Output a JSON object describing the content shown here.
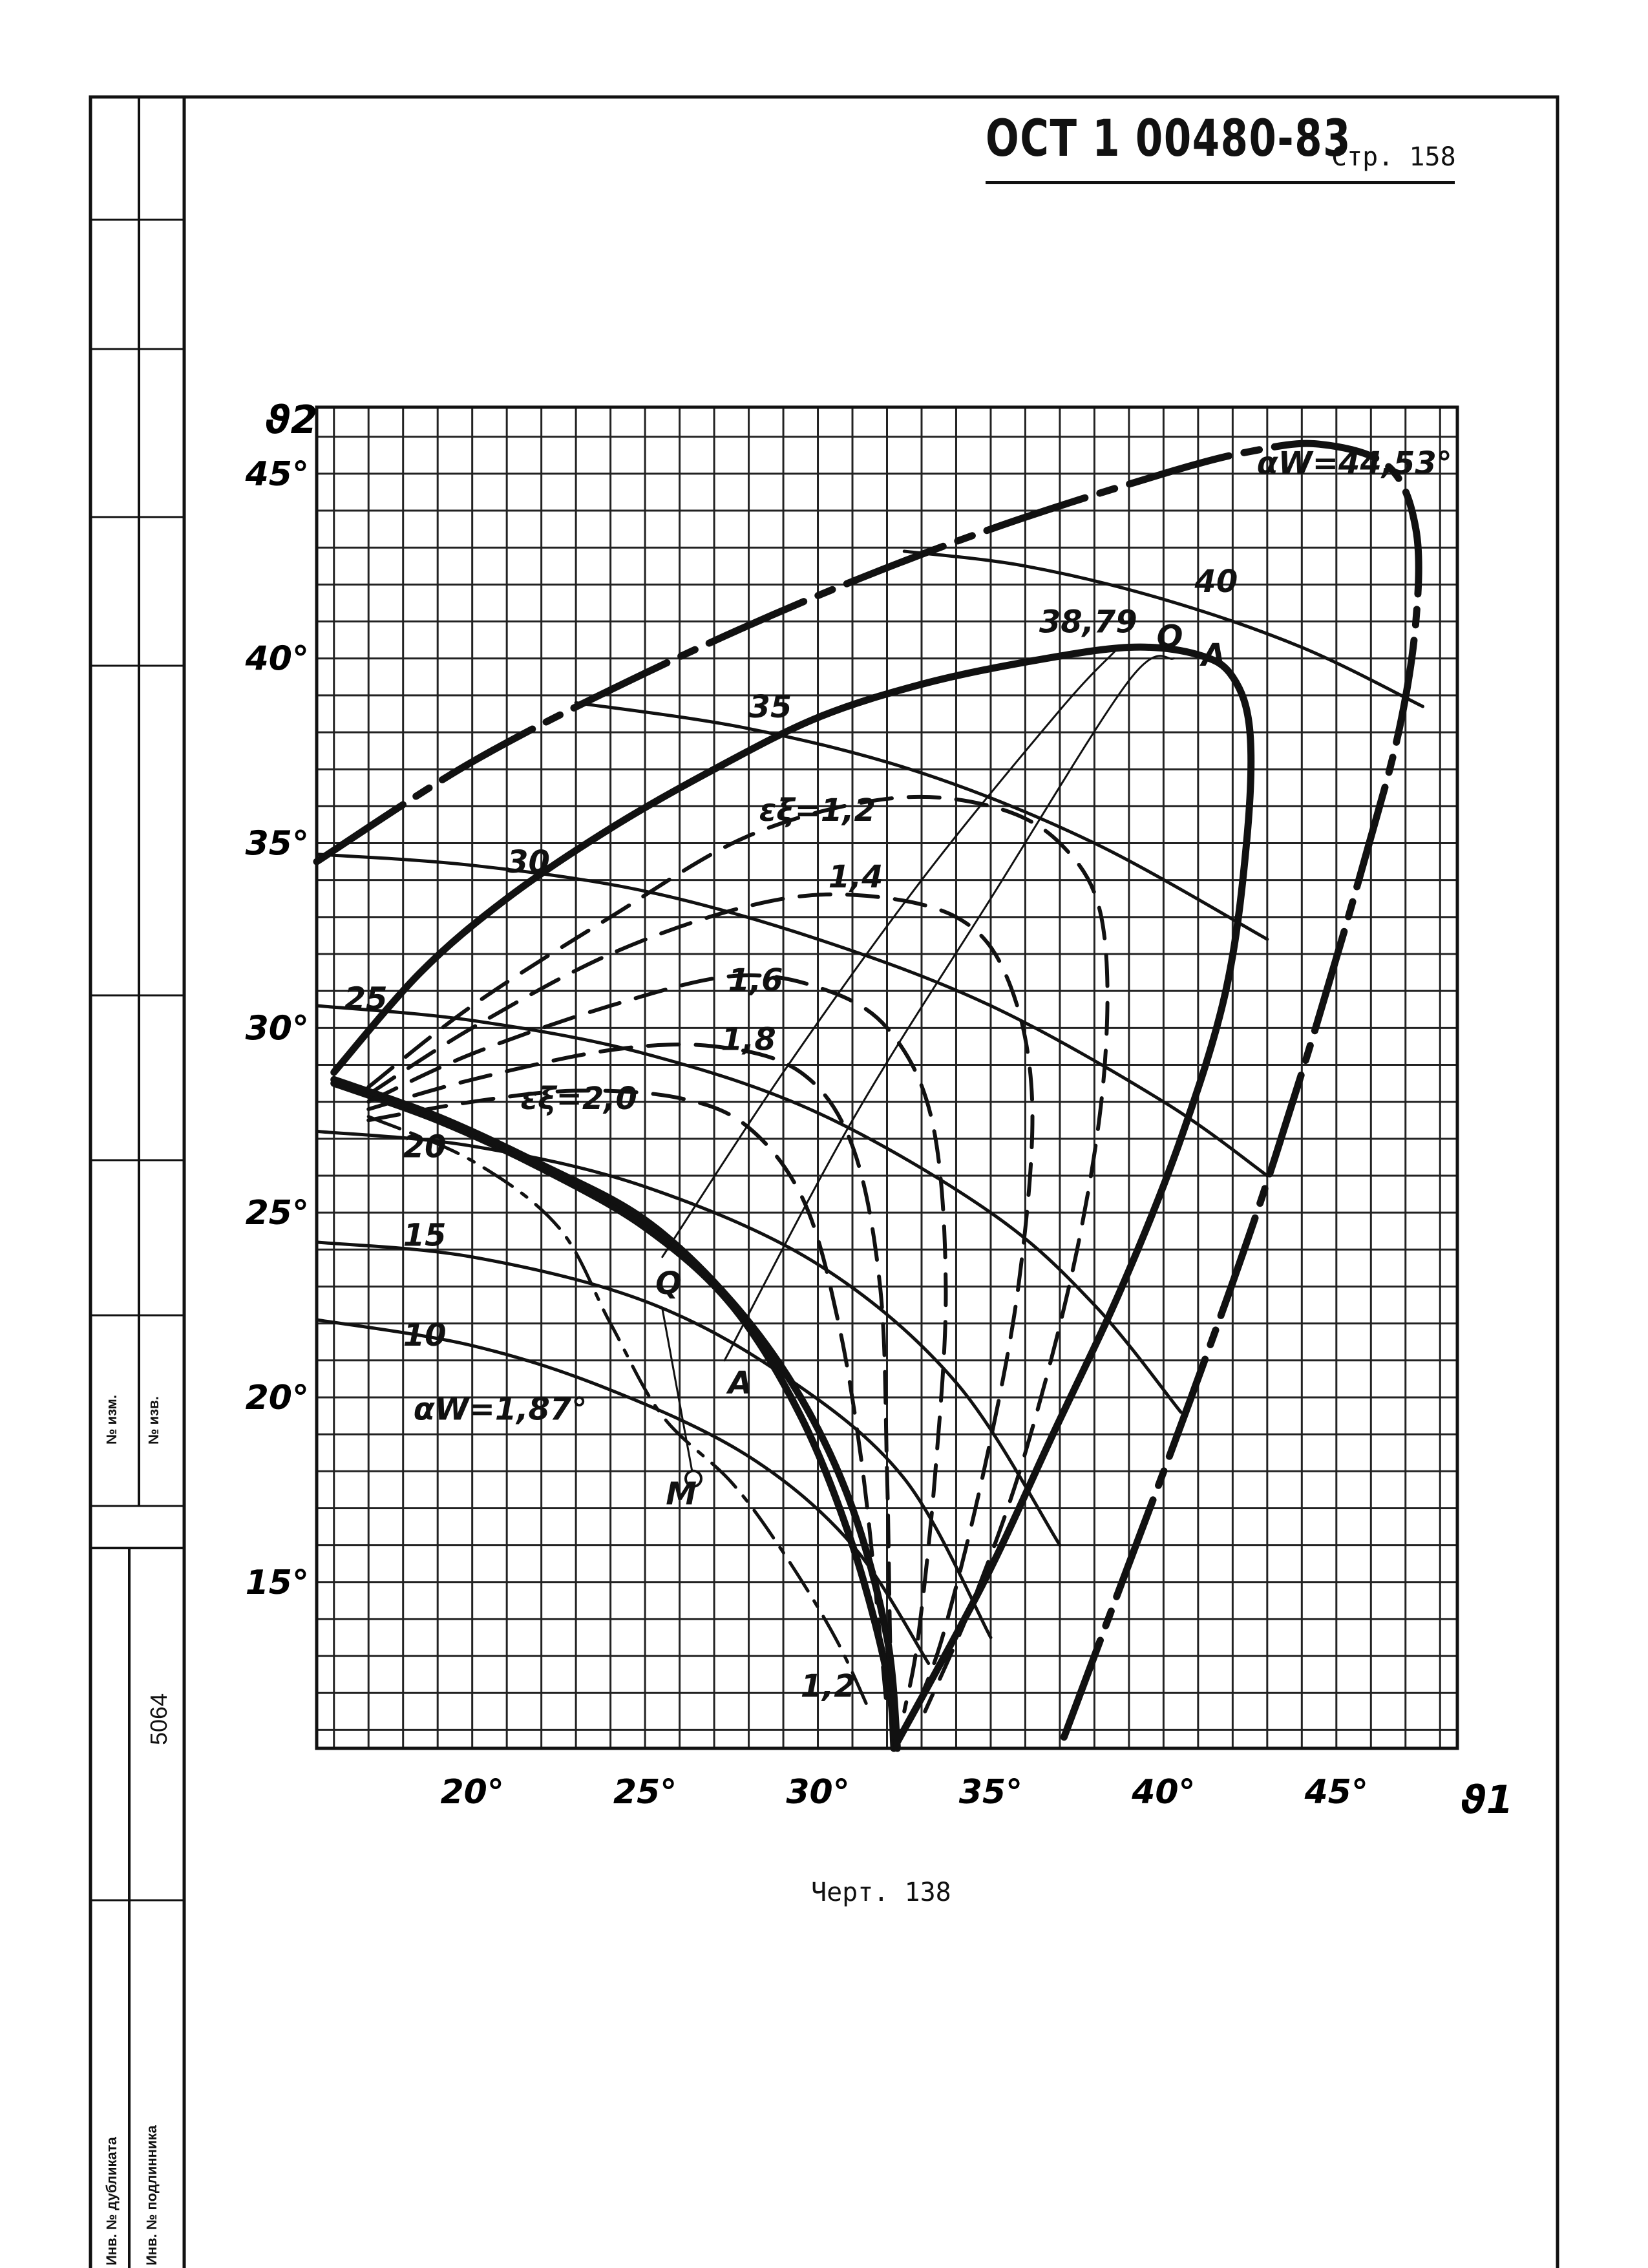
{
  "header": {
    "standard": "ОСТ 1 00480-83",
    "page": "Стр. 158"
  },
  "caption": "Черт. 138",
  "stamp": {
    "change_no_1": "№ изм.",
    "change_no_2": "№ изв.",
    "inventory_number": "5064",
    "duplicate_label": "Инв. № дубликата",
    "original_label": "Инв. № подлинника"
  },
  "chart_data": {
    "type": "line",
    "xlabel": "ϑ1",
    "ylabel": "ϑ2",
    "xlim": [
      15.5,
      48.5
    ],
    "ylim": [
      10.5,
      46.8
    ],
    "x_ticks": [
      "20°",
      "25°",
      "30°",
      "35°",
      "40°",
      "45°"
    ],
    "y_ticks": [
      "15°",
      "20°",
      "25°",
      "30°",
      "35°",
      "40°",
      "45°"
    ],
    "grid": true,
    "series": [
      {
        "name": "αW=44,53°",
        "style": "boundary-dashdot",
        "points": [
          [
            15.5,
            34.5
          ],
          [
            20,
            37.2
          ],
          [
            25,
            39.6
          ],
          [
            30,
            41.7
          ],
          [
            35,
            43.5
          ],
          [
            40,
            45
          ],
          [
            42.5,
            45.6
          ],
          [
            44.5,
            45.8
          ],
          [
            46.5,
            45.2
          ],
          [
            47.3,
            43.5
          ],
          [
            47.3,
            41
          ],
          [
            46.8,
            38
          ],
          [
            45.8,
            34.5
          ],
          [
            44.4,
            30
          ],
          [
            42.7,
            25
          ],
          [
            40.8,
            20
          ],
          [
            38.8,
            15
          ],
          [
            37,
            10.5
          ]
        ]
      },
      {
        "name": "38,79",
        "style": "boundary-thick",
        "points": [
          [
            16,
            28.8
          ],
          [
            18.5,
            31.5
          ],
          [
            21,
            33.5
          ],
          [
            24,
            35.4
          ],
          [
            27,
            37
          ],
          [
            30,
            38.4
          ],
          [
            33,
            39.3
          ],
          [
            36,
            39.9
          ],
          [
            39,
            40.3
          ],
          [
            41,
            40.1
          ],
          [
            42,
            39.5
          ],
          [
            42.5,
            38
          ],
          [
            42.4,
            35
          ],
          [
            41.8,
            31
          ],
          [
            40.5,
            27
          ],
          [
            38.8,
            23
          ],
          [
            36.8,
            19
          ],
          [
            34.8,
            15
          ],
          [
            32.2,
            10.5
          ]
        ]
      },
      {
        "name": "αW=1,87°",
        "style": "boundary-thick",
        "points": [
          [
            16,
            28.5
          ],
          [
            19,
            27.5
          ],
          [
            22,
            26.2
          ],
          [
            25,
            24.6
          ],
          [
            27.5,
            22.5
          ],
          [
            29.5,
            19.5
          ],
          [
            31,
            16
          ],
          [
            32,
            12.5
          ],
          [
            32.2,
            10.5
          ]
        ]
      },
      {
        "name": "A",
        "style": "boundary-thick",
        "points": [
          [
            16,
            28.6
          ],
          [
            19,
            27.6
          ],
          [
            22,
            26.3
          ],
          [
            25,
            24.8
          ],
          [
            27.5,
            22.6
          ],
          [
            29.5,
            20
          ],
          [
            31,
            17
          ],
          [
            32,
            13.5
          ],
          [
            32.3,
            10.5
          ]
        ]
      },
      {
        "name": "40",
        "style": "isoline",
        "points": [
          [
            32.5,
            42.9
          ],
          [
            36,
            42.5
          ],
          [
            40,
            41.6
          ],
          [
            44,
            40.3
          ],
          [
            47.5,
            38.7
          ]
        ]
      },
      {
        "name": "35",
        "style": "isoline",
        "points": [
          [
            23,
            38.8
          ],
          [
            28,
            38.1
          ],
          [
            33,
            36.9
          ],
          [
            38,
            35
          ],
          [
            43,
            32.4
          ]
        ]
      },
      {
        "name": "30",
        "style": "isoline",
        "points": [
          [
            15.5,
            34.7
          ],
          [
            20,
            34.4
          ],
          [
            25,
            33.7
          ],
          [
            30,
            32.4
          ],
          [
            35,
            30.6
          ],
          [
            40,
            28
          ],
          [
            43,
            26
          ]
        ]
      },
      {
        "name": "25",
        "style": "isoline",
        "points": [
          [
            15.5,
            30.6
          ],
          [
            20,
            30.2
          ],
          [
            25,
            29.3
          ],
          [
            30,
            27.7
          ],
          [
            35,
            25
          ],
          [
            38,
            22.5
          ],
          [
            40.5,
            19.6
          ]
        ]
      },
      {
        "name": "20",
        "style": "isoline",
        "points": [
          [
            15.5,
            27.2
          ],
          [
            20,
            26.8
          ],
          [
            25,
            25.7
          ],
          [
            30,
            23.6
          ],
          [
            34,
            20.4
          ],
          [
            37,
            16
          ]
        ]
      },
      {
        "name": "15",
        "style": "isoline",
        "points": [
          [
            15.5,
            24.2
          ],
          [
            20,
            23.8
          ],
          [
            25,
            22.6
          ],
          [
            29,
            20.6
          ],
          [
            32.5,
            17.8
          ],
          [
            35,
            13.5
          ]
        ]
      },
      {
        "name": "10",
        "style": "isoline",
        "points": [
          [
            15.5,
            22.1
          ],
          [
            20,
            21.4
          ],
          [
            24,
            20.2
          ],
          [
            28,
            18.4
          ],
          [
            31,
            16
          ],
          [
            33.2,
            12.8
          ]
        ]
      },
      {
        "name": "εξ=1,2",
        "style": "dashed",
        "points": [
          [
            17,
            28.4
          ],
          [
            20,
            30.6
          ],
          [
            24,
            33
          ],
          [
            28,
            35.2
          ],
          [
            32,
            36.2
          ],
          [
            35,
            36
          ],
          [
            37,
            35
          ],
          [
            38.2,
            33
          ],
          [
            38.3,
            29
          ],
          [
            37.5,
            24
          ],
          [
            36,
            18.5
          ],
          [
            34.5,
            14.5
          ],
          [
            33.1,
            11.5
          ]
        ]
      },
      {
        "name": "1,4",
        "style": "dashed",
        "points": [
          [
            17,
            28.2
          ],
          [
            20,
            30
          ],
          [
            24,
            32
          ],
          [
            28,
            33.3
          ],
          [
            31,
            33.6
          ],
          [
            34,
            33
          ],
          [
            35.5,
            31.3
          ],
          [
            36.2,
            28
          ],
          [
            35.8,
            23
          ],
          [
            34.8,
            18
          ],
          [
            33.6,
            13.5
          ],
          [
            32.8,
            11.5
          ]
        ]
      },
      {
        "name": "1,6",
        "style": "dashed",
        "points": [
          [
            17,
            28
          ],
          [
            20,
            29.3
          ],
          [
            24,
            30.6
          ],
          [
            27.5,
            31.4
          ],
          [
            30,
            31.1
          ],
          [
            32,
            30
          ],
          [
            33.3,
            27.5
          ],
          [
            33.7,
            23
          ],
          [
            33.4,
            18
          ],
          [
            32.9,
            13.5
          ],
          [
            32.5,
            11.5
          ]
        ]
      },
      {
        "name": "1,8",
        "style": "dashed",
        "points": [
          [
            17,
            27.8
          ],
          [
            20,
            28.6
          ],
          [
            24,
            29.4
          ],
          [
            27,
            29.5
          ],
          [
            29.5,
            28.8
          ],
          [
            31,
            26.8
          ],
          [
            31.8,
            23
          ],
          [
            32,
            18
          ],
          [
            32.1,
            13
          ],
          [
            32.2,
            11.5
          ]
        ]
      },
      {
        "name": "εξ=2,0",
        "style": "dashed",
        "points": [
          [
            17,
            27.5
          ],
          [
            20,
            28
          ],
          [
            23,
            28.3
          ],
          [
            26,
            28.1
          ],
          [
            28,
            27.3
          ],
          [
            29.6,
            25.3
          ],
          [
            30.6,
            22
          ],
          [
            31.3,
            18
          ],
          [
            31.8,
            13.5
          ],
          [
            32,
            11.5
          ]
        ]
      },
      {
        "name": "1,2",
        "style": "dash-dot",
        "points": [
          [
            17,
            27.6
          ],
          [
            20,
            26.4
          ],
          [
            22.5,
            24.6
          ],
          [
            24,
            22
          ],
          [
            25.5,
            19.5
          ],
          [
            27.5,
            17.7
          ],
          [
            29,
            15.8
          ],
          [
            30.5,
            13.5
          ],
          [
            31.5,
            11.5
          ]
        ]
      },
      {
        "name": "Q–Q",
        "style": "thin-line",
        "points": [
          [
            25.5,
            23.8
          ],
          [
            29,
            28.8
          ],
          [
            33,
            34
          ],
          [
            37,
            38.6
          ],
          [
            38.6,
            40.2
          ]
        ]
      },
      {
        "name": "A–A",
        "style": "thin-line",
        "points": [
          [
            27.3,
            21
          ],
          [
            31,
            27.5
          ],
          [
            35,
            33.5
          ],
          [
            39,
            39.4
          ],
          [
            40.3,
            40
          ]
        ]
      },
      {
        "name": "M–Q",
        "style": "thin-line",
        "points": [
          [
            26.4,
            17.8
          ],
          [
            25.5,
            22.4
          ]
        ]
      }
    ],
    "annotations": [
      {
        "text": "αW=44,53°",
        "x": 42.7,
        "y": 45.0
      },
      {
        "text": "38,79",
        "x": 36.4,
        "y": 40.7
      },
      {
        "text": "40",
        "x": 40.9,
        "y": 41.8
      },
      {
        "text": "Q",
        "x": 39.8,
        "y": 40.3
      },
      {
        "text": "A",
        "x": 41.1,
        "y": 39.8
      },
      {
        "text": "35",
        "x": 28.0,
        "y": 38.4
      },
      {
        "text": "εξ=1,2",
        "x": 28.3,
        "y": 35.6
      },
      {
        "text": "30",
        "x": 21.0,
        "y": 34.2
      },
      {
        "text": "1,4",
        "x": 30.3,
        "y": 33.8
      },
      {
        "text": "1,6",
        "x": 27.4,
        "y": 31.0
      },
      {
        "text": "25",
        "x": 16.3,
        "y": 30.5
      },
      {
        "text": "1,8",
        "x": 27.2,
        "y": 29.4
      },
      {
        "text": "εξ=2,0",
        "x": 21.4,
        "y": 27.8
      },
      {
        "text": "20",
        "x": 18.0,
        "y": 26.5
      },
      {
        "text": "15",
        "x": 18.0,
        "y": 24.1
      },
      {
        "text": "Q",
        "x": 25.3,
        "y": 22.8
      },
      {
        "text": "10",
        "x": 18.0,
        "y": 21.4
      },
      {
        "text": "αW=1,87°",
        "x": 18.3,
        "y": 19.4
      },
      {
        "text": "A",
        "x": 27.4,
        "y": 20.1
      },
      {
        "text": "M",
        "x": 25.6,
        "y": 17.1
      },
      {
        "text": "1,2",
        "x": 29.5,
        "y": 11.9
      }
    ],
    "marker_points": [
      {
        "label": "M",
        "x": 26.4,
        "y": 17.8
      }
    ]
  }
}
